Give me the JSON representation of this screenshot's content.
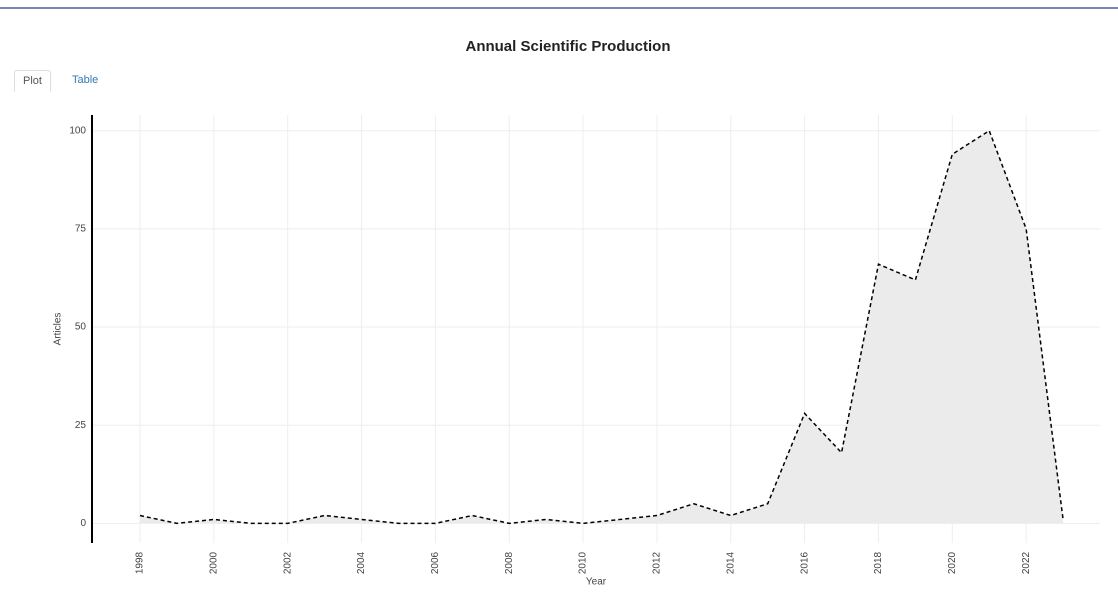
{
  "tabs": [
    "Plot",
    "Table"
  ],
  "chart_data": {
    "type": "line",
    "title": "Annual Scientific Production",
    "x_label": "Year",
    "y_label": "Articles",
    "x": [
      1998,
      1999,
      2000,
      2001,
      2002,
      2003,
      2004,
      2005,
      2006,
      2007,
      2008,
      2009,
      2010,
      2011,
      2012,
      2013,
      2014,
      2015,
      2016,
      2017,
      2018,
      2019,
      2020,
      2021,
      2022,
      2023
    ],
    "series": [
      {
        "name": "Articles",
        "color": "#000000",
        "values": [
          2,
          0,
          1,
          0,
          0,
          2,
          1,
          0,
          0,
          2,
          0,
          1,
          0,
          1,
          2,
          5,
          2,
          5,
          28,
          18,
          66,
          62,
          94,
          100,
          75,
          1
        ]
      }
    ],
    "xlim": [
      1996.7,
      2024
    ],
    "xticks": [
      1998,
      2000,
      2002,
      2004,
      2006,
      2008,
      2010,
      2012,
      2014,
      2016,
      2018,
      2020,
      2022
    ],
    "ylim": [
      -5,
      104
    ],
    "yticks": [
      0,
      25,
      50,
      75,
      100
    ],
    "grid": true,
    "fill": "#ebebeb"
  }
}
